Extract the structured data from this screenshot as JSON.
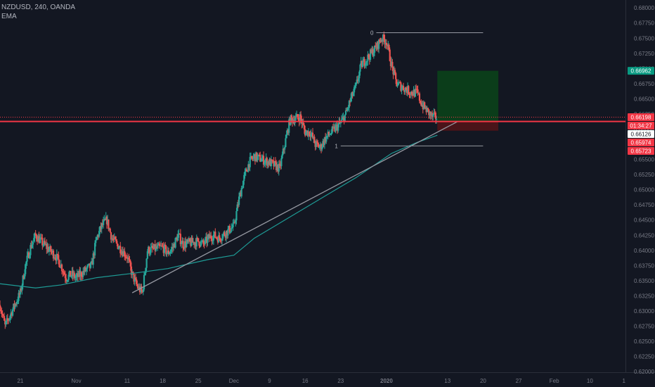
{
  "header": {
    "symbol_line": "NZDUSD, 240, OANDA",
    "indicator": "EMA"
  },
  "colors": {
    "background": "#131722",
    "up_candle": "#26a69a",
    "down_candle": "#ef5350",
    "ema": "#1e9c96",
    "trendline": "#9598a1",
    "fib": "#9598a1",
    "last_price_line": "#f23645",
    "profit_zone": "#0b3d1a",
    "loss_zone": "#4a1419"
  },
  "chart_data": {
    "type": "candlestick",
    "title": "",
    "xlabel": "",
    "ylabel": "",
    "grid": false,
    "ylim": [
      0.6199,
      0.6813
    ],
    "x_range": [
      "2019-10-17",
      "2020-02-17"
    ],
    "x_tick_labels": [
      "21",
      "Nov",
      "11",
      "18",
      "25",
      "Dec",
      "9",
      "16",
      "23",
      "2020",
      "13",
      "20",
      "27",
      "Feb",
      "10",
      "1"
    ],
    "y_ticks": [
      0.68,
      0.6775,
      0.675,
      0.6725,
      0.67,
      0.6675,
      0.665,
      0.6625,
      0.66,
      0.6575,
      0.655,
      0.6525,
      0.65,
      0.6475,
      0.645,
      0.6425,
      0.64,
      0.6375,
      0.635,
      0.6325,
      0.63,
      0.6275,
      0.625,
      0.6225,
      0.62
    ],
    "y_tick_labels": [
      "0.68000",
      "0.67750",
      "0.67500",
      "0.67250",
      "0.67000",
      "0.66750",
      "0.66500",
      "0.66250",
      "0.66000",
      "0.65750",
      "0.65500",
      "0.65250",
      "0.65000",
      "0.64750",
      "0.64500",
      "0.64250",
      "0.64000",
      "0.63750",
      "0.63500",
      "0.63250",
      "0.63000",
      "0.62750",
      "0.62500",
      "0.62250",
      "0.62000"
    ],
    "price_badges": [
      {
        "label": "0.66962",
        "value": 0.66962,
        "color": "#089981"
      },
      {
        "label": "0.66198",
        "value": 0.66198,
        "color": "#f23645"
      },
      {
        "label": "01:34:27",
        "value": 0.66198,
        "color": "#f23645"
      },
      {
        "label": "0.66126",
        "value": 0.66126,
        "color": "#ffffff"
      },
      {
        "label": "0.65974",
        "value": 0.65974,
        "color": "#f23645"
      },
      {
        "label": "0.65723",
        "value": 0.65723,
        "color": "#f23645"
      }
    ],
    "close_path": [
      [
        "2019-10-17",
        0.631
      ],
      [
        "2019-10-18",
        0.6275
      ],
      [
        "2019-10-21",
        0.633
      ],
      [
        "2019-10-22",
        0.6375
      ],
      [
        "2019-10-23",
        0.6405
      ],
      [
        "2019-10-24",
        0.6425
      ],
      [
        "2019-10-25",
        0.6415
      ],
      [
        "2019-10-28",
        0.639
      ],
      [
        "2019-10-29",
        0.6375
      ],
      [
        "2019-10-30",
        0.6355
      ],
      [
        "2019-10-31",
        0.636
      ],
      [
        "2019-11-01",
        0.6355
      ],
      [
        "2019-11-04",
        0.6375
      ],
      [
        "2019-11-05",
        0.642
      ],
      [
        "2019-11-06",
        0.644
      ],
      [
        "2019-11-07",
        0.645
      ],
      [
        "2019-11-08",
        0.642
      ],
      [
        "2019-11-11",
        0.639
      ],
      [
        "2019-11-12",
        0.636
      ],
      [
        "2019-11-13",
        0.634
      ],
      [
        "2019-11-14",
        0.633
      ],
      [
        "2019-11-15",
        0.64
      ],
      [
        "2019-11-18",
        0.6405
      ],
      [
        "2019-11-19",
        0.6395
      ],
      [
        "2019-11-20",
        0.6405
      ],
      [
        "2019-11-21",
        0.6425
      ],
      [
        "2019-11-22",
        0.641
      ],
      [
        "2019-11-25",
        0.6415
      ],
      [
        "2019-11-26",
        0.641
      ],
      [
        "2019-11-27",
        0.642
      ],
      [
        "2019-11-28",
        0.6425
      ],
      [
        "2019-11-29",
        0.642
      ],
      [
        "2019-12-02",
        0.644
      ],
      [
        "2019-12-03",
        0.6485
      ],
      [
        "2019-12-04",
        0.652
      ],
      [
        "2019-12-05",
        0.6545
      ],
      [
        "2019-12-06",
        0.6555
      ],
      [
        "2019-12-09",
        0.6545
      ],
      [
        "2019-12-10",
        0.654
      ],
      [
        "2019-12-11",
        0.6535
      ],
      [
        "2019-12-12",
        0.6575
      ],
      [
        "2019-12-13",
        0.6615
      ],
      [
        "2019-12-15",
        0.662
      ],
      [
        "2019-12-16",
        0.6595
      ],
      [
        "2019-12-17",
        0.6595
      ],
      [
        "2019-12-18",
        0.6575
      ],
      [
        "2019-12-19",
        0.657
      ],
      [
        "2019-12-20",
        0.6585
      ],
      [
        "2019-12-23",
        0.661
      ],
      [
        "2019-12-24",
        0.6625
      ],
      [
        "2019-12-25",
        0.665
      ],
      [
        "2019-12-26",
        0.667
      ],
      [
        "2019-12-27",
        0.6705
      ],
      [
        "2019-12-30",
        0.6735
      ],
      [
        "2019-12-31",
        0.675
      ],
      [
        "2020-01-01",
        0.6745
      ],
      [
        "2020-01-02",
        0.6705
      ],
      [
        "2020-01-03",
        0.6675
      ],
      [
        "2020-01-06",
        0.666
      ],
      [
        "2020-01-07",
        0.666
      ],
      [
        "2020-01-08",
        0.664
      ],
      [
        "2020-01-09",
        0.663
      ],
      [
        "2020-01-10",
        0.662
      ],
      [
        "2020-01-11",
        0.66198
      ]
    ],
    "ema_series": [
      [
        "2019-10-17",
        0.6345
      ],
      [
        "2019-10-24",
        0.6338
      ],
      [
        "2019-10-29",
        0.6343
      ],
      [
        "2019-11-05",
        0.6355
      ],
      [
        "2019-11-12",
        0.6362
      ],
      [
        "2019-11-19",
        0.637
      ],
      [
        "2019-11-27",
        0.6385
      ],
      [
        "2019-12-02",
        0.6392
      ],
      [
        "2019-12-06",
        0.642
      ],
      [
        "2019-12-12",
        0.645
      ],
      [
        "2019-12-20",
        0.649
      ],
      [
        "2019-12-26",
        0.652
      ],
      [
        "2020-01-02",
        0.656
      ],
      [
        "2020-01-07",
        0.6578
      ],
      [
        "2020-01-11",
        0.659
      ]
    ],
    "trendline": {
      "from": [
        "2019-11-12",
        0.633
      ],
      "to": [
        "2020-01-15",
        0.66126
      ]
    },
    "fib_levels": [
      {
        "label": "0",
        "value": 0.6759,
        "from": "2019-12-30",
        "to": "2020-01-20"
      },
      {
        "label": "1",
        "value": 0.65723,
        "from": "2019-12-23",
        "to": "2020-01-20"
      }
    ],
    "position": {
      "from": "2020-01-11",
      "to": "2020-01-23",
      "entry": 0.66126,
      "target": 0.66962,
      "stop": 0.65974
    },
    "last_price": 0.66198
  }
}
